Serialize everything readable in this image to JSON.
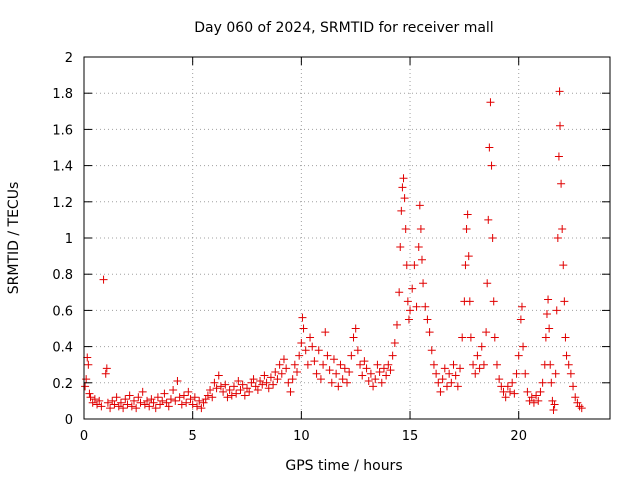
{
  "chart_data": {
    "type": "scatter",
    "title": "Day 060 of 2024, SRMTID for receiver mall",
    "xlabel": "GPS time / hours",
    "ylabel": "SRMTID / TECUs",
    "xlim": [
      0,
      24.2
    ],
    "ylim": [
      0,
      2
    ],
    "xticks": [
      0,
      5,
      10,
      15,
      20
    ],
    "yticks": [
      0,
      0.2,
      0.4,
      0.6,
      0.8,
      1,
      1.2,
      1.4,
      1.6,
      1.8,
      2
    ],
    "xtick_labels": [
      "0",
      "5",
      "10",
      "15",
      "20"
    ],
    "ytick_labels": [
      "0",
      "0.2",
      "0.4",
      "0.6",
      "0.8",
      "1",
      "1.2",
      "1.4",
      "1.6",
      "1.8",
      "2"
    ],
    "grid": true,
    "marker": "plus",
    "series": [
      {
        "name": "SRMTID",
        "color": "#e00000",
        "points": [
          [
            0.05,
            0.18
          ],
          [
            0.1,
            0.22
          ],
          [
            0.15,
            0.34
          ],
          [
            0.2,
            0.3
          ],
          [
            0.25,
            0.14
          ],
          [
            0.3,
            0.12
          ],
          [
            0.4,
            0.09
          ],
          [
            0.5,
            0.11
          ],
          [
            0.6,
            0.08
          ],
          [
            0.7,
            0.1
          ],
          [
            0.8,
            0.07
          ],
          [
            0.9,
            0.77
          ],
          [
            1.0,
            0.25
          ],
          [
            1.05,
            0.28
          ],
          [
            1.1,
            0.09
          ],
          [
            1.2,
            0.06
          ],
          [
            1.3,
            0.1
          ],
          [
            1.4,
            0.08
          ],
          [
            1.5,
            0.12
          ],
          [
            1.6,
            0.07
          ],
          [
            1.7,
            0.09
          ],
          [
            1.8,
            0.06
          ],
          [
            1.9,
            0.11
          ],
          [
            2.0,
            0.08
          ],
          [
            2.1,
            0.13
          ],
          [
            2.2,
            0.07
          ],
          [
            2.3,
            0.1
          ],
          [
            2.4,
            0.06
          ],
          [
            2.5,
            0.12
          ],
          [
            2.6,
            0.09
          ],
          [
            2.7,
            0.15
          ],
          [
            2.8,
            0.08
          ],
          [
            2.9,
            0.1
          ],
          [
            3.0,
            0.07
          ],
          [
            3.1,
            0.11
          ],
          [
            3.2,
            0.09
          ],
          [
            3.3,
            0.06
          ],
          [
            3.4,
            0.12
          ],
          [
            3.5,
            0.08
          ],
          [
            3.6,
            0.1
          ],
          [
            3.7,
            0.14
          ],
          [
            3.8,
            0.09
          ],
          [
            3.9,
            0.07
          ],
          [
            4.0,
            0.11
          ],
          [
            4.1,
            0.16
          ],
          [
            4.2,
            0.1
          ],
          [
            4.3,
            0.21
          ],
          [
            4.4,
            0.12
          ],
          [
            4.5,
            0.08
          ],
          [
            4.6,
            0.13
          ],
          [
            4.7,
            0.09
          ],
          [
            4.8,
            0.15
          ],
          [
            4.9,
            0.11
          ],
          [
            5.0,
            0.08
          ],
          [
            5.1,
            0.12
          ],
          [
            5.2,
            0.07
          ],
          [
            5.3,
            0.1
          ],
          [
            5.4,
            0.06
          ],
          [
            5.5,
            0.09
          ],
          [
            5.6,
            0.11
          ],
          [
            5.7,
            0.13
          ],
          [
            5.8,
            0.16
          ],
          [
            5.9,
            0.12
          ],
          [
            6.0,
            0.2
          ],
          [
            6.1,
            0.17
          ],
          [
            6.2,
            0.24
          ],
          [
            6.3,
            0.18
          ],
          [
            6.4,
            0.15
          ],
          [
            6.5,
            0.19
          ],
          [
            6.6,
            0.12
          ],
          [
            6.7,
            0.16
          ],
          [
            6.8,
            0.13
          ],
          [
            6.9,
            0.18
          ],
          [
            7.0,
            0.14
          ],
          [
            7.1,
            0.21
          ],
          [
            7.2,
            0.16
          ],
          [
            7.3,
            0.19
          ],
          [
            7.4,
            0.13
          ],
          [
            7.5,
            0.17
          ],
          [
            7.6,
            0.15
          ],
          [
            7.7,
            0.2
          ],
          [
            7.8,
            0.22
          ],
          [
            7.9,
            0.18
          ],
          [
            8.0,
            0.16
          ],
          [
            8.1,
            0.21
          ],
          [
            8.2,
            0.19
          ],
          [
            8.3,
            0.24
          ],
          [
            8.4,
            0.2
          ],
          [
            8.5,
            0.17
          ],
          [
            8.6,
            0.23
          ],
          [
            8.7,
            0.19
          ],
          [
            8.8,
            0.26
          ],
          [
            8.9,
            0.22
          ],
          [
            9.0,
            0.3
          ],
          [
            9.1,
            0.25
          ],
          [
            9.2,
            0.33
          ],
          [
            9.3,
            0.28
          ],
          [
            9.4,
            0.2
          ],
          [
            9.5,
            0.15
          ],
          [
            9.6,
            0.22
          ],
          [
            9.7,
            0.3
          ],
          [
            9.8,
            0.26
          ],
          [
            9.9,
            0.35
          ],
          [
            10.0,
            0.42
          ],
          [
            10.05,
            0.56
          ],
          [
            10.1,
            0.5
          ],
          [
            10.2,
            0.38
          ],
          [
            10.3,
            0.3
          ],
          [
            10.4,
            0.45
          ],
          [
            10.5,
            0.4
          ],
          [
            10.6,
            0.32
          ],
          [
            10.7,
            0.25
          ],
          [
            10.8,
            0.38
          ],
          [
            10.9,
            0.22
          ],
          [
            11.0,
            0.3
          ],
          [
            11.1,
            0.48
          ],
          [
            11.2,
            0.35
          ],
          [
            11.3,
            0.27
          ],
          [
            11.4,
            0.2
          ],
          [
            11.5,
            0.33
          ],
          [
            11.6,
            0.25
          ],
          [
            11.7,
            0.18
          ],
          [
            11.8,
            0.3
          ],
          [
            11.9,
            0.22
          ],
          [
            12.0,
            0.28
          ],
          [
            12.1,
            0.2
          ],
          [
            12.2,
            0.26
          ],
          [
            12.3,
            0.35
          ],
          [
            12.4,
            0.45
          ],
          [
            12.5,
            0.5
          ],
          [
            12.6,
            0.38
          ],
          [
            12.7,
            0.3
          ],
          [
            12.8,
            0.24
          ],
          [
            12.9,
            0.32
          ],
          [
            13.0,
            0.28
          ],
          [
            13.1,
            0.21
          ],
          [
            13.2,
            0.25
          ],
          [
            13.3,
            0.18
          ],
          [
            13.4,
            0.22
          ],
          [
            13.5,
            0.3
          ],
          [
            13.6,
            0.26
          ],
          [
            13.7,
            0.2
          ],
          [
            13.8,
            0.28
          ],
          [
            13.9,
            0.24
          ],
          [
            14.0,
            0.3
          ],
          [
            14.1,
            0.27
          ],
          [
            14.2,
            0.35
          ],
          [
            14.3,
            0.42
          ],
          [
            14.4,
            0.52
          ],
          [
            14.5,
            0.7
          ],
          [
            14.55,
            0.95
          ],
          [
            14.6,
            1.15
          ],
          [
            14.65,
            1.28
          ],
          [
            14.7,
            1.33
          ],
          [
            14.75,
            1.22
          ],
          [
            14.8,
            1.05
          ],
          [
            14.85,
            0.85
          ],
          [
            14.9,
            0.65
          ],
          [
            14.95,
            0.55
          ],
          [
            15.0,
            0.6
          ],
          [
            15.1,
            0.72
          ],
          [
            15.2,
            0.85
          ],
          [
            15.3,
            0.62
          ],
          [
            15.4,
            0.95
          ],
          [
            15.45,
            1.18
          ],
          [
            15.5,
            1.05
          ],
          [
            15.55,
            0.88
          ],
          [
            15.6,
            0.75
          ],
          [
            15.7,
            0.62
          ],
          [
            15.8,
            0.55
          ],
          [
            15.9,
            0.48
          ],
          [
            16.0,
            0.38
          ],
          [
            16.1,
            0.3
          ],
          [
            16.2,
            0.25
          ],
          [
            16.3,
            0.2
          ],
          [
            16.4,
            0.15
          ],
          [
            16.5,
            0.22
          ],
          [
            16.6,
            0.28
          ],
          [
            16.7,
            0.18
          ],
          [
            16.8,
            0.25
          ],
          [
            16.9,
            0.2
          ],
          [
            17.0,
            0.3
          ],
          [
            17.1,
            0.24
          ],
          [
            17.2,
            0.18
          ],
          [
            17.3,
            0.28
          ],
          [
            17.4,
            0.45
          ],
          [
            17.5,
            0.65
          ],
          [
            17.55,
            0.85
          ],
          [
            17.6,
            1.05
          ],
          [
            17.65,
            1.13
          ],
          [
            17.7,
            0.9
          ],
          [
            17.75,
            0.65
          ],
          [
            17.8,
            0.45
          ],
          [
            17.9,
            0.3
          ],
          [
            18.0,
            0.25
          ],
          [
            18.1,
            0.35
          ],
          [
            18.2,
            0.28
          ],
          [
            18.3,
            0.4
          ],
          [
            18.4,
            0.3
          ],
          [
            18.5,
            0.48
          ],
          [
            18.55,
            0.75
          ],
          [
            18.6,
            1.1
          ],
          [
            18.65,
            1.5
          ],
          [
            18.7,
            1.75
          ],
          [
            18.75,
            1.4
          ],
          [
            18.8,
            1.0
          ],
          [
            18.85,
            0.65
          ],
          [
            18.9,
            0.45
          ],
          [
            19.0,
            0.3
          ],
          [
            19.1,
            0.22
          ],
          [
            19.2,
            0.18
          ],
          [
            19.3,
            0.15
          ],
          [
            19.4,
            0.12
          ],
          [
            19.5,
            0.18
          ],
          [
            19.6,
            0.15
          ],
          [
            19.7,
            0.2
          ],
          [
            19.8,
            0.14
          ],
          [
            19.9,
            0.25
          ],
          [
            20.0,
            0.35
          ],
          [
            20.1,
            0.55
          ],
          [
            20.15,
            0.62
          ],
          [
            20.2,
            0.4
          ],
          [
            20.3,
            0.25
          ],
          [
            20.4,
            0.15
          ],
          [
            20.5,
            0.1
          ],
          [
            20.6,
            0.12
          ],
          [
            20.7,
            0.09
          ],
          [
            20.8,
            0.13
          ],
          [
            20.9,
            0.1
          ],
          [
            21.0,
            0.15
          ],
          [
            21.1,
            0.2
          ],
          [
            21.2,
            0.3
          ],
          [
            21.25,
            0.45
          ],
          [
            21.3,
            0.58
          ],
          [
            21.35,
            0.66
          ],
          [
            21.4,
            0.5
          ],
          [
            21.45,
            0.3
          ],
          [
            21.5,
            0.2
          ],
          [
            21.55,
            0.1
          ],
          [
            21.6,
            0.05
          ],
          [
            21.65,
            0.08
          ],
          [
            21.7,
            0.25
          ],
          [
            21.75,
            0.6
          ],
          [
            21.8,
            1.0
          ],
          [
            21.85,
            1.45
          ],
          [
            21.88,
            1.81
          ],
          [
            21.9,
            1.62
          ],
          [
            21.95,
            1.3
          ],
          [
            22.0,
            1.05
          ],
          [
            22.05,
            0.85
          ],
          [
            22.1,
            0.65
          ],
          [
            22.15,
            0.45
          ],
          [
            22.2,
            0.35
          ],
          [
            22.3,
            0.3
          ],
          [
            22.4,
            0.25
          ],
          [
            22.5,
            0.18
          ],
          [
            22.6,
            0.12
          ],
          [
            22.7,
            0.09
          ],
          [
            22.8,
            0.07
          ],
          [
            22.9,
            0.06
          ]
        ]
      }
    ]
  }
}
